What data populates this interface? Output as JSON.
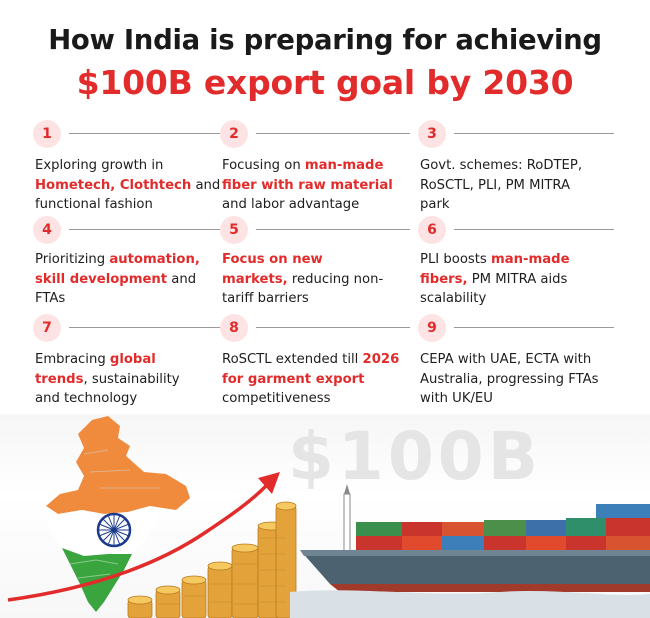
{
  "header": {
    "title_line1": "How India is preparing for achieving",
    "title_line2": "$100B export goal by 2030"
  },
  "cells": [
    {
      "number": "1",
      "parts": [
        {
          "t": "Exploring growth in "
        },
        {
          "t": "Hometech, Clothtech",
          "hl": true
        },
        {
          "t": " and functional fashion"
        }
      ]
    },
    {
      "number": "2",
      "parts": [
        {
          "t": "Focusing on "
        },
        {
          "t": "man-made fiber with raw material",
          "hl": true
        },
        {
          "t": " and labor advantage"
        }
      ]
    },
    {
      "number": "3",
      "parts": [
        {
          "t": "Govt. schemes: RoDTEP, RoSCTL, PLI, PM MITRA park"
        }
      ]
    },
    {
      "number": "4",
      "parts": [
        {
          "t": "Prioritizing "
        },
        {
          "t": "automation, skill development",
          "hl": true
        },
        {
          "t": " and FTAs"
        }
      ]
    },
    {
      "number": "5",
      "parts": [
        {
          "t": "Focus on new markets,",
          "hl": true
        },
        {
          "t": " reducing non-tariff barriers"
        }
      ]
    },
    {
      "number": "6",
      "parts": [
        {
          "t": "PLI boosts "
        },
        {
          "t": "man-made fibers,",
          "hl": true
        },
        {
          "t": " PM MITRA aids scalability"
        }
      ]
    },
    {
      "number": "7",
      "parts": [
        {
          "t": "Embracing "
        },
        {
          "t": "global trends",
          "hl": true
        },
        {
          "t": ", sustainability and technology"
        }
      ]
    },
    {
      "number": "8",
      "parts": [
        {
          "t": "RoSCTL extended till "
        },
        {
          "t": "2026 for garment export",
          "hl": true
        },
        {
          "t": " competitiveness"
        }
      ]
    },
    {
      "number": "9",
      "parts": [
        {
          "t": "CEPA with UAE, ECTA with Australia, progressing FTAs with UK/EU"
        }
      ]
    }
  ],
  "illustration": {
    "big_text": "$100B"
  },
  "colors": {
    "accent": "#e22b2b",
    "badge_bg": "#fde3e3",
    "saffron": "#f08a3c",
    "green": "#3aa43f",
    "coin": "#e3a23a",
    "ship_hull": "#4d6270"
  }
}
